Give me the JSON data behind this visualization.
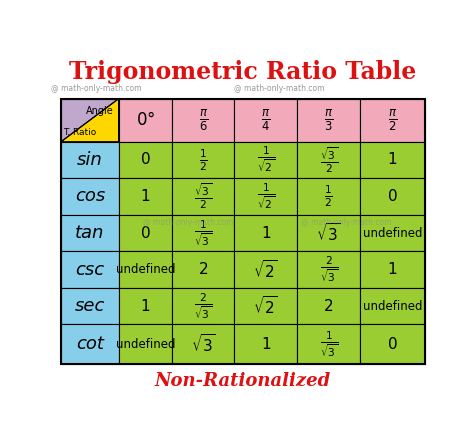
{
  "title": "Trigonometric Ratio Table",
  "subtitle": "Non-Rationalized",
  "watermark": "@ math-only-math.com",
  "row_headers": [
    "sin",
    "cos",
    "tan",
    "csc",
    "sec",
    "cot"
  ],
  "col_header_labels": [
    "$0°$",
    "$\\frac{\\pi}{6}$",
    "$\\frac{\\pi}{4}$",
    "$\\frac{\\pi}{3}$",
    "$\\frac{\\pi}{2}$"
  ],
  "cell_data": [
    [
      "0",
      "$\\frac{1}{2}$",
      "$\\frac{1}{\\sqrt{2}}$",
      "$\\frac{\\sqrt{3}}{2}$",
      "1"
    ],
    [
      "1",
      "$\\frac{\\sqrt{3}}{2}$",
      "$\\frac{1}{\\sqrt{2}}$",
      "$\\frac{1}{2}$",
      "0"
    ],
    [
      "0",
      "$\\frac{1}{\\sqrt{3}}$",
      "1",
      "$\\sqrt{3}$",
      "undefined"
    ],
    [
      "undefined",
      "2",
      "$\\sqrt{2}$",
      "$\\frac{2}{\\sqrt{3}}$",
      "1"
    ],
    [
      "1",
      "$\\frac{2}{\\sqrt{3}}$",
      "$\\sqrt{2}$",
      "2",
      "undefined"
    ],
    [
      "undefined",
      "$\\sqrt{3}$",
      "1",
      "$\\frac{1}{\\sqrt{3}}$",
      "0"
    ]
  ],
  "c_pink": "#F2AABB",
  "c_blue": "#87CEEB",
  "c_green": "#9ACD32",
  "c_yellow": "#FFD700",
  "c_purple": "#BFA8CC",
  "color_title": "#DD1111",
  "color_subtitle": "#DD1111",
  "bg_color": "#FFFFFF",
  "figsize": [
    4.74,
    4.41
  ],
  "dpi": 100
}
